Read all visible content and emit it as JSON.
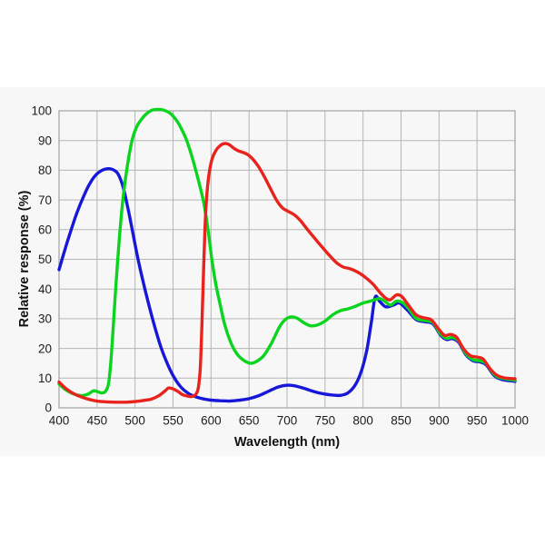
{
  "chart_data": {
    "type": "line",
    "title": "",
    "xlabel": "Wavelength (nm)",
    "ylabel": "Relative response (%)",
    "xlim": [
      400,
      1000
    ],
    "ylim": [
      0,
      100
    ],
    "x_ticks": [
      400,
      450,
      500,
      550,
      600,
      650,
      700,
      750,
      800,
      850,
      900,
      950,
      1000
    ],
    "y_ticks": [
      0,
      10,
      20,
      30,
      40,
      50,
      60,
      70,
      80,
      90,
      100
    ],
    "grid": true,
    "legend_position": "none",
    "colors": {
      "background_band": "#f7f7f7",
      "grid": "#b5b5b5",
      "frame": "#a3a3a3",
      "text": "#1c1c1c",
      "blue": "#1717d9",
      "green": "#0bd41e",
      "red": "#e8231e"
    },
    "series": [
      {
        "name": "blue",
        "color": "#1717d9",
        "points": [
          [
            400,
            46.5
          ],
          [
            408,
            53.5
          ],
          [
            416,
            60
          ],
          [
            424,
            66
          ],
          [
            432,
            71
          ],
          [
            440,
            75.3
          ],
          [
            448,
            78.3
          ],
          [
            456,
            79.9
          ],
          [
            463,
            80.5
          ],
          [
            470,
            80.3
          ],
          [
            477,
            79
          ],
          [
            483,
            75.5
          ],
          [
            487,
            71.5
          ],
          [
            492,
            65.5
          ],
          [
            497,
            59
          ],
          [
            504,
            50
          ],
          [
            513,
            40
          ],
          [
            523,
            30
          ],
          [
            534,
            20.5
          ],
          [
            544,
            14
          ],
          [
            552,
            10
          ],
          [
            561,
            6.8
          ],
          [
            570,
            4.9
          ],
          [
            580,
            3.7
          ],
          [
            590,
            3
          ],
          [
            600,
            2.6
          ],
          [
            612,
            2.4
          ],
          [
            625,
            2.3
          ],
          [
            638,
            2.6
          ],
          [
            650,
            3.1
          ],
          [
            662,
            4
          ],
          [
            675,
            5.5
          ],
          [
            688,
            7
          ],
          [
            700,
            7.6
          ],
          [
            710,
            7.4
          ],
          [
            722,
            6.6
          ],
          [
            735,
            5.5
          ],
          [
            748,
            4.7
          ],
          [
            760,
            4.3
          ],
          [
            770,
            4.2
          ],
          [
            780,
            5
          ],
          [
            790,
            7.8
          ],
          [
            798,
            12.5
          ],
          [
            805,
            19.5
          ],
          [
            811,
            29
          ],
          [
            816,
            37.3
          ],
          [
            822,
            35.8
          ],
          [
            830,
            34
          ],
          [
            840,
            34.6
          ],
          [
            848,
            35.3
          ],
          [
            858,
            33
          ],
          [
            870,
            29.7
          ],
          [
            881,
            29
          ],
          [
            892,
            28.3
          ],
          [
            902,
            24.5
          ],
          [
            910,
            23
          ],
          [
            918,
            23.3
          ],
          [
            926,
            22
          ],
          [
            935,
            18
          ],
          [
            945,
            15.8
          ],
          [
            953,
            15.5
          ],
          [
            962,
            14.5
          ],
          [
            972,
            11
          ],
          [
            982,
            9.6
          ],
          [
            1000,
            8.9
          ]
        ]
      },
      {
        "name": "green",
        "color": "#0bd41e",
        "points": [
          [
            400,
            8
          ],
          [
            408,
            6.2
          ],
          [
            416,
            5
          ],
          [
            424,
            4.3
          ],
          [
            430,
            4.1
          ],
          [
            438,
            4.6
          ],
          [
            445,
            5.7
          ],
          [
            450,
            5.5
          ],
          [
            456,
            5
          ],
          [
            461,
            5.5
          ],
          [
            465,
            8
          ],
          [
            468,
            15
          ],
          [
            471,
            26
          ],
          [
            474,
            38
          ],
          [
            477,
            49
          ],
          [
            480,
            59
          ],
          [
            484,
            70
          ],
          [
            489,
            80
          ],
          [
            496,
            90
          ],
          [
            502,
            94.5
          ],
          [
            508,
            97
          ],
          [
            515,
            99
          ],
          [
            522,
            100.2
          ],
          [
            530,
            100.5
          ],
          [
            538,
            100.2
          ],
          [
            546,
            99.2
          ],
          [
            554,
            97
          ],
          [
            562,
            93.5
          ],
          [
            568,
            90
          ],
          [
            575,
            84.5
          ],
          [
            583,
            77
          ],
          [
            590,
            69.5
          ],
          [
            596,
            60
          ],
          [
            601,
            50
          ],
          [
            606,
            42
          ],
          [
            611,
            36
          ],
          [
            618,
            28
          ],
          [
            626,
            22
          ],
          [
            634,
            18.2
          ],
          [
            643,
            16
          ],
          [
            652,
            15
          ],
          [
            661,
            15.8
          ],
          [
            670,
            17.8
          ],
          [
            680,
            22
          ],
          [
            690,
            27.2
          ],
          [
            698,
            29.8
          ],
          [
            705,
            30.6
          ],
          [
            713,
            30.2
          ],
          [
            722,
            28.7
          ],
          [
            731,
            27.6
          ],
          [
            740,
            27.9
          ],
          [
            750,
            29.2
          ],
          [
            760,
            31.3
          ],
          [
            770,
            32.7
          ],
          [
            780,
            33.3
          ],
          [
            790,
            34.2
          ],
          [
            800,
            35.3
          ],
          [
            808,
            35.8
          ],
          [
            817,
            36.5
          ],
          [
            822,
            36.8
          ],
          [
            829,
            35.8
          ],
          [
            836,
            34.6
          ],
          [
            844,
            35.9
          ],
          [
            852,
            35.4
          ],
          [
            860,
            33.4
          ],
          [
            870,
            30.1
          ],
          [
            881,
            29.4
          ],
          [
            892,
            28.7
          ],
          [
            902,
            24.9
          ],
          [
            910,
            23.4
          ],
          [
            918,
            23.7
          ],
          [
            926,
            22.4
          ],
          [
            935,
            18.4
          ],
          [
            945,
            16.2
          ],
          [
            953,
            15.9
          ],
          [
            962,
            14.9
          ],
          [
            972,
            11.4
          ],
          [
            982,
            10
          ],
          [
            1000,
            9.3
          ]
        ]
      },
      {
        "name": "red",
        "color": "#e8231e",
        "points": [
          [
            400,
            8.7
          ],
          [
            410,
            6.3
          ],
          [
            420,
            4.7
          ],
          [
            430,
            3.6
          ],
          [
            440,
            2.8
          ],
          [
            452,
            2.2
          ],
          [
            464,
            2
          ],
          [
            476,
            1.9
          ],
          [
            488,
            1.9
          ],
          [
            500,
            2.1
          ],
          [
            512,
            2.5
          ],
          [
            522,
            3
          ],
          [
            532,
            4.2
          ],
          [
            540,
            5.8
          ],
          [
            544,
            6.7
          ],
          [
            550,
            6.4
          ],
          [
            556,
            5.6
          ],
          [
            562,
            4.5
          ],
          [
            568,
            4
          ],
          [
            574,
            3.8
          ],
          [
            579,
            4.3
          ],
          [
            582,
            5.5
          ],
          [
            584,
            8
          ],
          [
            586,
            14
          ],
          [
            588,
            28
          ],
          [
            590,
            45
          ],
          [
            592,
            60
          ],
          [
            594,
            70
          ],
          [
            597,
            78
          ],
          [
            601,
            83.5
          ],
          [
            606,
            86.5
          ],
          [
            612,
            88.3
          ],
          [
            618,
            89
          ],
          [
            624,
            88.6
          ],
          [
            630,
            87.4
          ],
          [
            636,
            86.5
          ],
          [
            642,
            86
          ],
          [
            648,
            85.3
          ],
          [
            655,
            83.7
          ],
          [
            662,
            81.4
          ],
          [
            670,
            77.9
          ],
          [
            678,
            73.9
          ],
          [
            686,
            70
          ],
          [
            694,
            67.3
          ],
          [
            702,
            66.1
          ],
          [
            710,
            64.9
          ],
          [
            718,
            62.9
          ],
          [
            727,
            60
          ],
          [
            737,
            56.9
          ],
          [
            747,
            53.9
          ],
          [
            757,
            51
          ],
          [
            766,
            48.7
          ],
          [
            774,
            47.4
          ],
          [
            782,
            46.9
          ],
          [
            790,
            46.1
          ],
          [
            798,
            44.9
          ],
          [
            806,
            43.3
          ],
          [
            814,
            41.4
          ],
          [
            822,
            38.9
          ],
          [
            830,
            36.9
          ],
          [
            836,
            36.4
          ],
          [
            844,
            38
          ],
          [
            851,
            37.5
          ],
          [
            860,
            34.5
          ],
          [
            870,
            31.3
          ],
          [
            880,
            30.3
          ],
          [
            890,
            29.6
          ],
          [
            899,
            26.7
          ],
          [
            907,
            24.4
          ],
          [
            915,
            24.7
          ],
          [
            923,
            23.8
          ],
          [
            932,
            20
          ],
          [
            941,
            17.6
          ],
          [
            950,
            17.1
          ],
          [
            958,
            16.4
          ],
          [
            967,
            13.2
          ],
          [
            976,
            11
          ],
          [
            986,
            10.1
          ],
          [
            1000,
            9.8
          ]
        ]
      }
    ]
  }
}
